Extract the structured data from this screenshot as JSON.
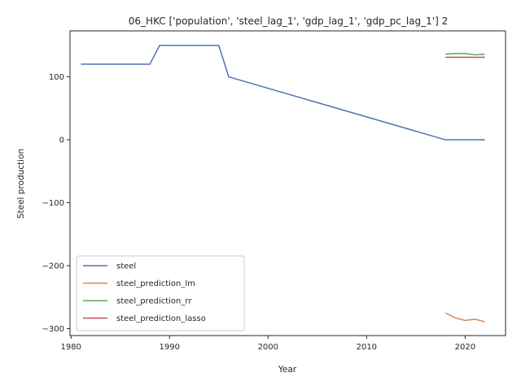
{
  "chart_data": {
    "type": "line",
    "title": "06_HKC ['population', 'steel_lag_1', 'gdp_lag_1', 'gdp_pc_lag_1'] 2",
    "xlabel": "Year",
    "ylabel": "Steel production",
    "xlim": [
      1979.9,
      2024.1
    ],
    "ylim": [
      -311,
      173
    ],
    "xticks": [
      1980,
      1990,
      2000,
      2010,
      2020
    ],
    "yticks": [
      -300,
      -200,
      -100,
      0,
      100
    ],
    "ytick_labels": [
      "−300",
      "−200",
      "−100",
      "0",
      "100"
    ],
    "grid": false,
    "legend_position": "lower-left",
    "series": [
      {
        "name": "steel",
        "color": "#4c72b0",
        "x": [
          1981,
          1988,
          1989,
          1995,
          1996,
          2018,
          2022
        ],
        "y": [
          120,
          120,
          150,
          150,
          100,
          0,
          0
        ]
      },
      {
        "name": "steel_prediction_lm",
        "color": "#dd8452",
        "x": [
          2018,
          2019,
          2020,
          2021,
          2022
        ],
        "y": [
          -275,
          -283,
          -287,
          -285,
          -289
        ]
      },
      {
        "name": "steel_prediction_rr",
        "color": "#55a868",
        "x": [
          2018,
          2019,
          2020,
          2021,
          2022
        ],
        "y": [
          136,
          137,
          137,
          135,
          136
        ]
      },
      {
        "name": "steel_prediction_lasso",
        "color": "#c44e52",
        "x": [
          2018,
          2019,
          2020,
          2021,
          2022
        ],
        "y": [
          131,
          131,
          131,
          131,
          131
        ]
      }
    ]
  }
}
